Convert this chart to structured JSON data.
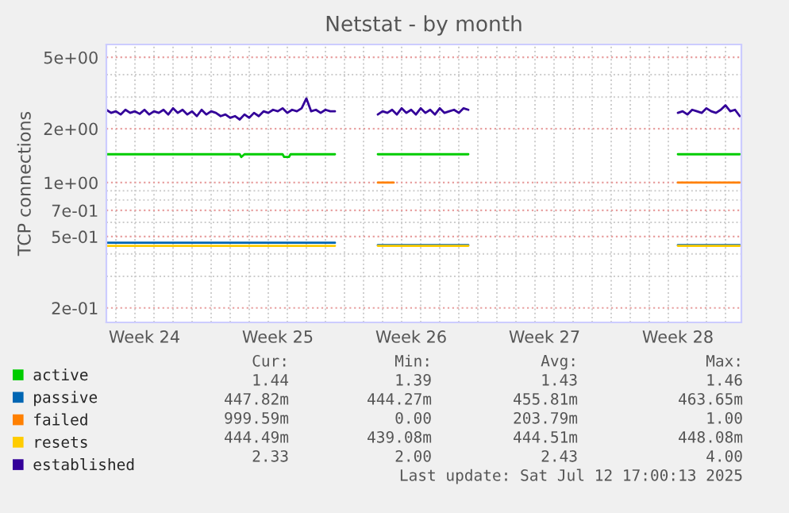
{
  "chart_data": {
    "type": "line",
    "title": "Netstat - by month",
    "ylabel": "TCP connections",
    "log": true,
    "grid": true,
    "legend": "bottom",
    "line_style": "solid",
    "marker": "none",
    "xlim": [
      "2025-06-10T12:00",
      "2025-07-13T20:00"
    ],
    "xticks": [
      {
        "value": "2025-06-12T12:00",
        "label": "Week 24"
      },
      {
        "value": "2025-06-19T12:00",
        "label": "Week 25"
      },
      {
        "value": "2025-06-26T12:00",
        "label": "Week 26"
      },
      {
        "value": "2025-07-03T12:00",
        "label": "Week 27"
      },
      {
        "value": "2025-07-10T12:00",
        "label": "Week 28"
      }
    ],
    "ylim": [
      0.166,
      5.9
    ],
    "yticks": [
      {
        "value": 0.2,
        "label": "2e-01"
      },
      {
        "value": 0.5,
        "label": "5e-01"
      },
      {
        "value": 0.7,
        "label": "7e-01"
      },
      {
        "value": 1,
        "label": "1e+00"
      },
      {
        "value": 2,
        "label": "2e+00"
      },
      {
        "value": 5,
        "label": "5e+00"
      }
    ],
    "series": [
      {
        "name": "active",
        "color": "#00cc00",
        "x": [
          "2025-06-10T12:00",
          "2025-06-17T12:00",
          "2025-06-17T14:00",
          "2025-06-17T18:00",
          "2025-06-19T18:00",
          "2025-06-19T20:00",
          "2025-06-20T02:00",
          "2025-06-20T04:00",
          "2025-06-22T12:00",
          "2025-06-23T12:00",
          "2025-06-24T18:00",
          "2025-06-29T12:00",
          "2025-07-05T00:00",
          "2025-07-10T12:00",
          "2025-07-13T18:00"
        ],
        "values": [
          1.44,
          1.44,
          1.39,
          1.44,
          1.44,
          1.39,
          1.39,
          1.44,
          1.44,
          null,
          1.44,
          1.44,
          null,
          1.44,
          1.44
        ]
      },
      {
        "name": "passive",
        "color": "#0066b3",
        "x": [
          "2025-06-10T12:00",
          "2025-06-22T12:00",
          "2025-06-23T12:00",
          "2025-06-24T18:00",
          "2025-06-29T12:00",
          "2025-07-05T00:00",
          "2025-07-10T12:00",
          "2025-07-13T18:00"
        ],
        "values": [
          0.462,
          0.462,
          null,
          0.448,
          0.448,
          null,
          0.448,
          0.448
        ]
      },
      {
        "name": "failed",
        "color": "#ff8000",
        "x": [
          "2025-06-24T18:00",
          "2025-06-25T14:00",
          "2025-06-26T00:00",
          "2025-07-10T12:00",
          "2025-07-13T18:00"
        ],
        "values": [
          1.0,
          1.0,
          null,
          1.0,
          1.0
        ]
      },
      {
        "name": "resets",
        "color": "#ffcc00",
        "x": [
          "2025-06-10T12:00",
          "2025-06-22T12:00",
          "2025-06-23T12:00",
          "2025-06-24T18:00",
          "2025-06-29T12:00",
          "2025-07-05T00:00",
          "2025-07-10T12:00",
          "2025-07-13T18:00"
        ],
        "values": [
          0.444,
          0.444,
          null,
          0.444,
          0.444,
          null,
          0.444,
          0.444
        ]
      },
      {
        "name": "established",
        "color": "#330099",
        "x": [
          "2025-06-10T12:00",
          "2025-06-10T18:00",
          "2025-06-11T00:00",
          "2025-06-11T06:00",
          "2025-06-11T12:00",
          "2025-06-11T18:00",
          "2025-06-12T00:00",
          "2025-06-12T06:00",
          "2025-06-12T12:00",
          "2025-06-12T18:00",
          "2025-06-13T00:00",
          "2025-06-13T06:00",
          "2025-06-13T12:00",
          "2025-06-13T18:00",
          "2025-06-14T00:00",
          "2025-06-14T06:00",
          "2025-06-14T12:00",
          "2025-06-14T18:00",
          "2025-06-15T00:00",
          "2025-06-15T06:00",
          "2025-06-15T12:00",
          "2025-06-15T18:00",
          "2025-06-16T00:00",
          "2025-06-16T06:00",
          "2025-06-16T12:00",
          "2025-06-16T18:00",
          "2025-06-17T00:00",
          "2025-06-17T06:00",
          "2025-06-17T12:00",
          "2025-06-17T18:00",
          "2025-06-18T00:00",
          "2025-06-18T06:00",
          "2025-06-18T12:00",
          "2025-06-18T18:00",
          "2025-06-19T00:00",
          "2025-06-19T06:00",
          "2025-06-19T12:00",
          "2025-06-19T18:00",
          "2025-06-20T00:00",
          "2025-06-20T06:00",
          "2025-06-20T12:00",
          "2025-06-20T18:00",
          "2025-06-21T00:00",
          "2025-06-21T06:00",
          "2025-06-21T12:00",
          "2025-06-21T18:00",
          "2025-06-22T00:00",
          "2025-06-22T06:00",
          "2025-06-22T12:00",
          "2025-06-23T12:00",
          "2025-06-24T18:00",
          "2025-06-25T00:00",
          "2025-06-25T06:00",
          "2025-06-25T12:00",
          "2025-06-25T18:00",
          "2025-06-26T00:00",
          "2025-06-26T06:00",
          "2025-06-26T12:00",
          "2025-06-26T18:00",
          "2025-06-27T00:00",
          "2025-06-27T06:00",
          "2025-06-27T12:00",
          "2025-06-27T18:00",
          "2025-06-28T00:00",
          "2025-06-28T06:00",
          "2025-06-28T12:00",
          "2025-06-28T18:00",
          "2025-06-29T00:00",
          "2025-06-29T06:00",
          "2025-06-29T12:00",
          "2025-07-05T00:00",
          "2025-07-10T12:00",
          "2025-07-10T18:00",
          "2025-07-11T00:00",
          "2025-07-11T06:00",
          "2025-07-11T12:00",
          "2025-07-11T18:00",
          "2025-07-12T00:00",
          "2025-07-12T06:00",
          "2025-07-12T12:00",
          "2025-07-12T18:00",
          "2025-07-13T00:00",
          "2025-07-13T06:00",
          "2025-07-13T12:00",
          "2025-07-13T18:00"
        ],
        "values": [
          2.55,
          2.45,
          2.5,
          2.4,
          2.55,
          2.45,
          2.5,
          2.42,
          2.55,
          2.4,
          2.5,
          2.45,
          2.55,
          2.4,
          2.6,
          2.45,
          2.55,
          2.4,
          2.5,
          2.35,
          2.55,
          2.4,
          2.5,
          2.45,
          2.35,
          2.4,
          2.3,
          2.35,
          2.25,
          2.4,
          2.3,
          2.45,
          2.35,
          2.5,
          2.45,
          2.55,
          2.5,
          2.6,
          2.45,
          2.55,
          2.5,
          2.6,
          2.95,
          2.5,
          2.55,
          2.45,
          2.55,
          2.5,
          2.5,
          null,
          2.4,
          2.5,
          2.45,
          2.55,
          2.4,
          2.6,
          2.45,
          2.55,
          2.4,
          2.6,
          2.45,
          2.55,
          2.4,
          2.6,
          2.45,
          2.5,
          2.55,
          2.45,
          2.6,
          2.55,
          null,
          2.45,
          2.5,
          2.4,
          2.55,
          2.5,
          2.45,
          2.6,
          2.5,
          2.45,
          2.55,
          2.7,
          2.5,
          2.55,
          2.35
        ]
      }
    ],
    "annotations": [
      "Cur:",
      "Min:",
      "Avg:",
      "Max:",
      "1.44",
      "1.39",
      "1.43",
      "1.46",
      "447.82m",
      "444.27m",
      "455.81m",
      "463.65m",
      "999.59m",
      "0.00",
      "203.79m",
      "1.00",
      "444.49m",
      "439.08m",
      "444.51m",
      "448.08m",
      "2.33",
      "2.00",
      "2.43",
      "4.00",
      "Last update: Sat Jul 12 17:00:13 2025"
    ]
  }
}
